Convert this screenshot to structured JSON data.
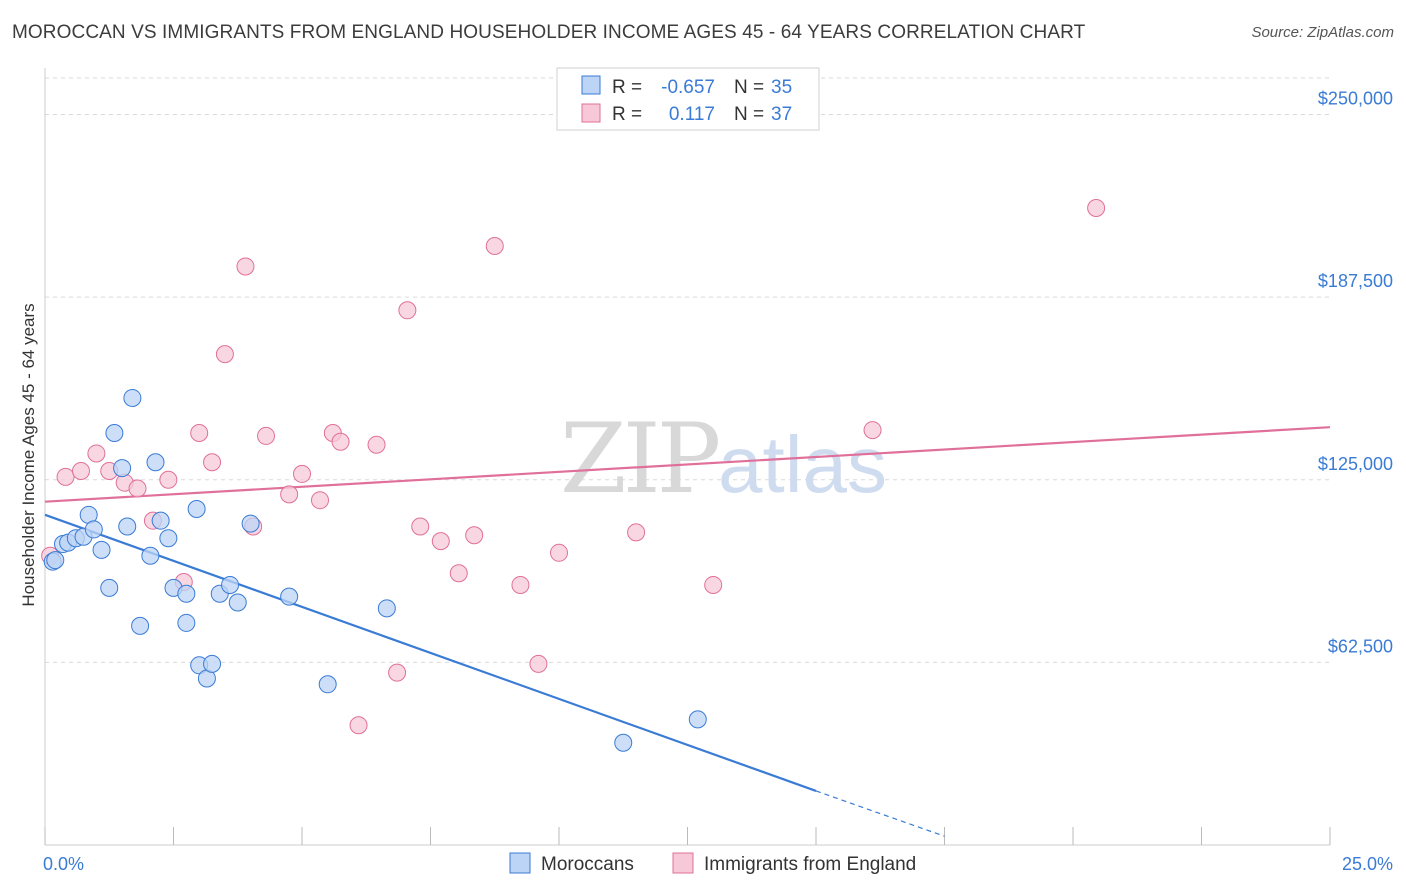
{
  "title": "MOROCCAN VS IMMIGRANTS FROM ENGLAND HOUSEHOLDER INCOME AGES 45 - 64 YEARS CORRELATION CHART",
  "source": "Source: ZipAtlas.com",
  "watermark": {
    "zip": "ZIP",
    "atlas": "atlas"
  },
  "colors": {
    "blue": "#3a7bd5",
    "blue_fill": "#bcd4f5",
    "pink": "#e07099",
    "pink_fill": "#f7c9d8",
    "grid": "#d9d9d9",
    "label": "#3a7bd5"
  },
  "chart_data": {
    "type": "scatter",
    "title": "MOROCCAN VS IMMIGRANTS FROM ENGLAND HOUSEHOLDER INCOME AGES 45 - 64 YEARS CORRELATION CHART",
    "xlabel": "",
    "ylabel": "Householder Income Ages 45 - 64 years",
    "xlim": [
      0,
      25
    ],
    "ylim": [
      0,
      262500
    ],
    "x_tick_labels": [
      "0.0%",
      "25.0%"
    ],
    "y_ticks": [
      62500,
      125000,
      187500,
      250000
    ],
    "y_tick_labels": [
      "$62,500",
      "$125,000",
      "$187,500",
      "$250,000"
    ],
    "grid": true,
    "legend_position": "top-center",
    "series": [
      {
        "name": "Moroccans",
        "color": "#3a7bd5",
        "r_label": "R =",
        "r_value": "-0.657",
        "n_label": "N =",
        "n_value": "35",
        "points": [
          [
            0.15,
            97000
          ],
          [
            0.35,
            103000
          ],
          [
            0.45,
            103500
          ],
          [
            0.6,
            105000
          ],
          [
            0.75,
            105500
          ],
          [
            0.85,
            113000
          ],
          [
            0.95,
            108000
          ],
          [
            1.1,
            101000
          ],
          [
            1.25,
            88000
          ],
          [
            1.35,
            141000
          ],
          [
            1.5,
            129000
          ],
          [
            1.6,
            109000
          ],
          [
            1.7,
            153000
          ],
          [
            1.85,
            75000
          ],
          [
            2.05,
            99000
          ],
          [
            2.15,
            131000
          ],
          [
            2.25,
            111000
          ],
          [
            2.4,
            105000
          ],
          [
            2.5,
            88000
          ],
          [
            2.75,
            86000
          ],
          [
            2.75,
            76000
          ],
          [
            2.95,
            115000
          ],
          [
            3.0,
            61500
          ],
          [
            3.15,
            57000
          ],
          [
            3.25,
            62000
          ],
          [
            3.4,
            86000
          ],
          [
            3.6,
            89000
          ],
          [
            3.75,
            83000
          ],
          [
            4.0,
            110000
          ],
          [
            4.75,
            85000
          ],
          [
            5.5,
            55000
          ],
          [
            6.65,
            81000
          ],
          [
            11.25,
            35000
          ],
          [
            12.7,
            43000
          ],
          [
            0.2,
            97500
          ]
        ],
        "trend": {
          "x": [
            0,
            15
          ],
          "y": [
            113000,
            18500
          ],
          "dashed_to": [
            17.5,
            3000
          ]
        }
      },
      {
        "name": "Immigrants from England",
        "color": "#e07099",
        "r_label": "R =",
        "r_value": "0.117",
        "n_label": "N =",
        "n_value": "37",
        "points": [
          [
            0.1,
            99000
          ],
          [
            0.4,
            126000
          ],
          [
            0.7,
            128000
          ],
          [
            1.0,
            134000
          ],
          [
            1.25,
            128000
          ],
          [
            1.55,
            124000
          ],
          [
            1.8,
            122000
          ],
          [
            2.1,
            111000
          ],
          [
            2.4,
            125000
          ],
          [
            2.7,
            90000
          ],
          [
            3.0,
            141000
          ],
          [
            3.25,
            131000
          ],
          [
            3.5,
            168000
          ],
          [
            3.9,
            198000
          ],
          [
            4.05,
            109000
          ],
          [
            4.3,
            140000
          ],
          [
            4.75,
            120000
          ],
          [
            5.0,
            127000
          ],
          [
            5.35,
            118000
          ],
          [
            5.6,
            141000
          ],
          [
            5.75,
            138000
          ],
          [
            6.45,
            137000
          ],
          [
            6.85,
            59000
          ],
          [
            7.05,
            183000
          ],
          [
            7.3,
            109000
          ],
          [
            6.1,
            41000
          ],
          [
            7.7,
            104000
          ],
          [
            8.05,
            93000
          ],
          [
            8.35,
            106000
          ],
          [
            8.75,
            205000
          ],
          [
            9.25,
            89000
          ],
          [
            9.6,
            62000
          ],
          [
            10.0,
            100000
          ],
          [
            11.5,
            107000
          ],
          [
            13.0,
            89000
          ],
          [
            16.1,
            142000
          ],
          [
            20.45,
            218000
          ]
        ],
        "trend": {
          "x": [
            0,
            25
          ],
          "y": [
            117500,
            143000
          ]
        }
      }
    ]
  }
}
